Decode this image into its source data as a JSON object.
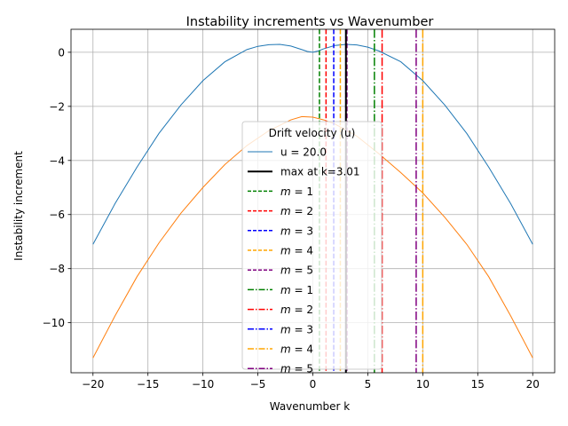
{
  "chart_data": {
    "type": "line",
    "title": "Instability increments vs Wavenumber",
    "xlabel": "Wavenumber k",
    "ylabel": "Instability increment",
    "xlim": [
      -22,
      22
    ],
    "ylim": [
      -11.85,
      0.85
    ],
    "xticks": [
      -20,
      -15,
      -10,
      -5,
      0,
      5,
      10,
      15,
      20
    ],
    "xtick_labels": [
      "−20",
      "−15",
      "−10",
      "−5",
      "0",
      "5",
      "10",
      "15",
      "20"
    ],
    "yticks": [
      0,
      -2,
      -4,
      -6,
      -8,
      -10
    ],
    "ytick_labels": [
      "0",
      "−2",
      "−4",
      "−6",
      "−8",
      "−10"
    ],
    "grid": true,
    "legend_placement": "center",
    "legend_title": "Drift velocity (u)",
    "series": [
      {
        "name": "u = 20.0",
        "color": "#1f77b4",
        "style": "solid",
        "x": [
          -20,
          -18,
          -16,
          -14,
          -12,
          -10,
          -8,
          -6,
          -5,
          -4,
          -3,
          -2,
          -1,
          -0.5,
          0,
          0.5,
          1,
          2,
          3,
          4,
          5,
          6,
          8,
          10,
          12,
          14,
          16,
          18,
          20
        ],
        "y": [
          -7.1,
          -5.6,
          -4.25,
          -3.0,
          -1.95,
          -1.05,
          -0.35,
          0.1,
          0.22,
          0.28,
          0.29,
          0.23,
          0.1,
          0.03,
          0.0,
          0.05,
          0.13,
          0.25,
          0.29,
          0.27,
          0.19,
          0.05,
          -0.35,
          -1.05,
          -1.95,
          -3.0,
          -4.25,
          -5.6,
          -7.1
        ]
      },
      {
        "name": "",
        "color": "#ff7f0e",
        "style": "solid",
        "x": [
          -20,
          -18,
          -16,
          -14,
          -12,
          -10,
          -8,
          -6,
          -4,
          -2,
          -1,
          0,
          1,
          2,
          4,
          6,
          8,
          10,
          12,
          14,
          16,
          18,
          20
        ],
        "y": [
          -11.3,
          -9.75,
          -8.3,
          -7.05,
          -5.95,
          -5.0,
          -4.15,
          -3.45,
          -2.9,
          -2.5,
          -2.38,
          -2.4,
          -2.5,
          -2.65,
          -3.1,
          -3.75,
          -4.45,
          -5.2,
          -6.1,
          -7.1,
          -8.3,
          -9.75,
          -11.3
        ]
      }
    ],
    "max_line": {
      "name": "max at k=3.01",
      "x": 3.01,
      "color": "#000000"
    },
    "dashed_lines": [
      {
        "label": "m = 1",
        "x": 0.6,
        "color": "#008000"
      },
      {
        "label": "m = 2",
        "x": 1.2,
        "color": "#ff0000"
      },
      {
        "label": "m = 3",
        "x": 1.9,
        "color": "#0000ff"
      },
      {
        "label": "m = 4",
        "x": 2.5,
        "color": "#ffa500"
      },
      {
        "label": "m = 5",
        "x": 3.1,
        "color": "#800080"
      }
    ],
    "dashdot_lines": [
      {
        "label": "m = 1",
        "x": 5.6,
        "color": "#008000"
      },
      {
        "label": "m = 2",
        "x": 6.3,
        "color": "#ff0000"
      },
      {
        "label": "m = 3",
        "x": 3.0,
        "color": "#0000ff"
      },
      {
        "label": "m = 4",
        "x": 10.0,
        "color": "#ffa500"
      },
      {
        "label": "m = 5",
        "x": 9.4,
        "color": "#800080"
      }
    ]
  }
}
